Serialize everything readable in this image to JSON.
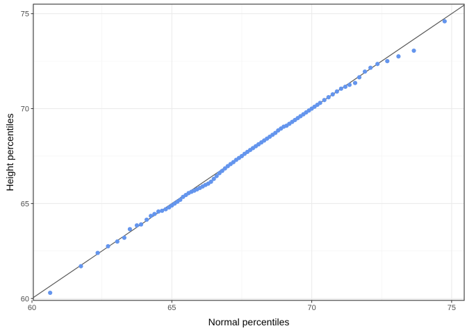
{
  "chart_data": {
    "type": "scatter",
    "title": "",
    "xlabel": "Normal percentiles",
    "ylabel": "Height percentiles",
    "xlim": [
      60.05,
      75.45
    ],
    "ylim": [
      59.9,
      75.5
    ],
    "x_ticks": [
      60,
      65,
      70,
      75
    ],
    "y_ticks": [
      60,
      65,
      70,
      75
    ],
    "x_tick_labels": [
      "60",
      "65",
      "70",
      "75"
    ],
    "y_tick_labels": [
      "60",
      "65",
      "70",
      "75"
    ],
    "grid": true,
    "point_color": "#6495ED",
    "line_color": "#595959",
    "reference_line": {
      "slope": 1,
      "intercept": 0
    },
    "points": [
      [
        60.65,
        60.3
      ],
      [
        61.75,
        61.7
      ],
      [
        62.35,
        62.4
      ],
      [
        62.72,
        62.75
      ],
      [
        63.05,
        63.0
      ],
      [
        63.3,
        63.2
      ],
      [
        63.5,
        63.65
      ],
      [
        63.75,
        63.85
      ],
      [
        63.9,
        63.9
      ],
      [
        64.1,
        64.15
      ],
      [
        64.25,
        64.35
      ],
      [
        64.38,
        64.45
      ],
      [
        64.52,
        64.58
      ],
      [
        64.65,
        64.62
      ],
      [
        64.78,
        64.7
      ],
      [
        64.9,
        64.8
      ],
      [
        65.0,
        64.9
      ],
      [
        65.1,
        65.0
      ],
      [
        65.2,
        65.1
      ],
      [
        65.3,
        65.2
      ],
      [
        65.4,
        65.35
      ],
      [
        65.5,
        65.45
      ],
      [
        65.6,
        65.55
      ],
      [
        65.7,
        65.62
      ],
      [
        65.8,
        65.68
      ],
      [
        65.9,
        65.75
      ],
      [
        66.0,
        65.82
      ],
      [
        66.1,
        65.9
      ],
      [
        66.2,
        65.98
      ],
      [
        66.3,
        66.05
      ],
      [
        66.4,
        66.15
      ],
      [
        66.5,
        66.3
      ],
      [
        66.6,
        66.45
      ],
      [
        66.7,
        66.6
      ],
      [
        66.8,
        66.72
      ],
      [
        66.9,
        66.85
      ],
      [
        67.0,
        66.97
      ],
      [
        67.1,
        67.08
      ],
      [
        67.2,
        67.18
      ],
      [
        67.3,
        67.3
      ],
      [
        67.4,
        67.4
      ],
      [
        67.5,
        67.5
      ],
      [
        67.6,
        67.62
      ],
      [
        67.7,
        67.72
      ],
      [
        67.8,
        67.82
      ],
      [
        67.9,
        67.92
      ],
      [
        68.0,
        68.02
      ],
      [
        68.1,
        68.12
      ],
      [
        68.2,
        68.22
      ],
      [
        68.3,
        68.32
      ],
      [
        68.4,
        68.42
      ],
      [
        68.5,
        68.52
      ],
      [
        68.6,
        68.62
      ],
      [
        68.7,
        68.72
      ],
      [
        68.8,
        68.85
      ],
      [
        68.9,
        68.95
      ],
      [
        69.0,
        69.05
      ],
      [
        69.1,
        69.1
      ],
      [
        69.2,
        69.2
      ],
      [
        69.3,
        69.3
      ],
      [
        69.4,
        69.4
      ],
      [
        69.5,
        69.5
      ],
      [
        69.6,
        69.6
      ],
      [
        69.7,
        69.7
      ],
      [
        69.8,
        69.8
      ],
      [
        69.9,
        69.9
      ],
      [
        70.0,
        70.0
      ],
      [
        70.1,
        70.1
      ],
      [
        70.2,
        70.2
      ],
      [
        70.3,
        70.3
      ],
      [
        70.45,
        70.45
      ],
      [
        70.6,
        70.6
      ],
      [
        70.75,
        70.75
      ],
      [
        70.9,
        70.9
      ],
      [
        71.05,
        71.05
      ],
      [
        71.2,
        71.15
      ],
      [
        71.35,
        71.25
      ],
      [
        71.55,
        71.35
      ],
      [
        71.7,
        71.65
      ],
      [
        71.9,
        71.95
      ],
      [
        72.1,
        72.15
      ],
      [
        72.35,
        72.35
      ],
      [
        72.7,
        72.5
      ],
      [
        73.1,
        72.75
      ],
      [
        73.65,
        73.05
      ],
      [
        74.75,
        74.6
      ]
    ]
  }
}
